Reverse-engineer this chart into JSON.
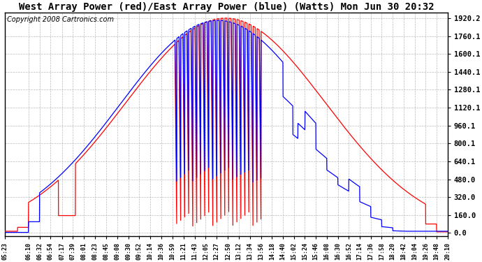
{
  "title": "West Array Power (red)/East Array Power (blue) (Watts) Mon Jun 30 20:32",
  "copyright": "Copyright 2008 Cartronics.com",
  "y_ticks": [
    0.0,
    160.0,
    320.0,
    480.0,
    640.1,
    800.1,
    960.1,
    1120.1,
    1280.1,
    1440.1,
    1600.1,
    1760.1,
    1920.2
  ],
  "y_max": 1970,
  "y_min": -30,
  "background_color": "#ffffff",
  "plot_bg_color": "#ffffff",
  "grid_color": "#aaaaaa",
  "red_color": "#ff0000",
  "blue_color": "#0000ff",
  "title_fontsize": 10,
  "copyright_fontsize": 7,
  "x_tick_labels": [
    "05:23",
    "06:10",
    "06:32",
    "06:54",
    "07:17",
    "07:39",
    "08:01",
    "08:23",
    "08:45",
    "09:08",
    "09:30",
    "09:52",
    "10:14",
    "10:36",
    "10:59",
    "11:21",
    "11:43",
    "12:05",
    "12:27",
    "12:50",
    "13:12",
    "13:34",
    "13:56",
    "14:18",
    "14:40",
    "15:02",
    "15:24",
    "15:46",
    "16:08",
    "16:30",
    "16:52",
    "17:14",
    "17:36",
    "17:58",
    "18:20",
    "18:42",
    "19:04",
    "19:26",
    "19:48",
    "20:10"
  ]
}
